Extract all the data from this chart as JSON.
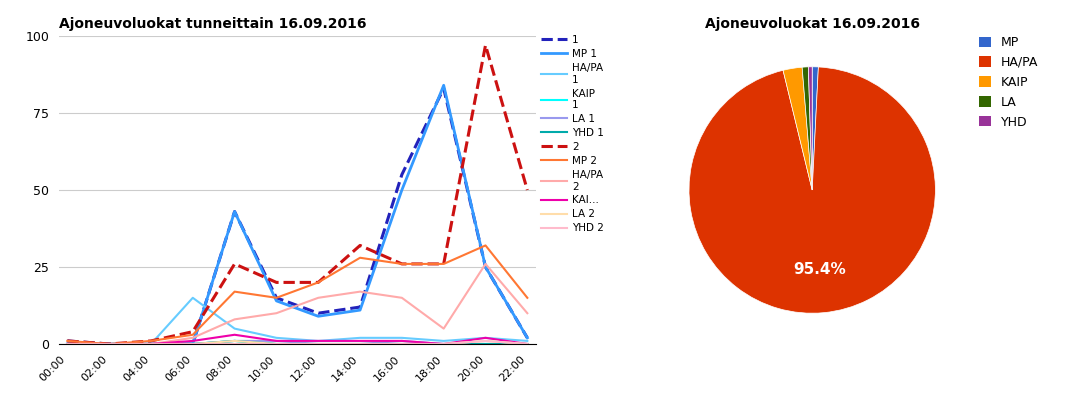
{
  "line_title": "Ajoneuvoluokat tunneittain 16.09.2016",
  "pie_title": "Ajoneuvoluokat 16.09.2016",
  "hours": [
    "00:00",
    "02:00",
    "04:00",
    "06:00",
    "08:00",
    "10:00",
    "12:00",
    "14:00",
    "16:00",
    "18:00",
    "20:00",
    "22:00"
  ],
  "series": [
    {
      "label": "1",
      "color": "#2222bb",
      "dash": "dashed",
      "lw": 2.2,
      "values": [
        1,
        0,
        0,
        0,
        43,
        15,
        10,
        12,
        55,
        83,
        25,
        2
      ]
    },
    {
      "label": "MP 1",
      "color": "#3399ff",
      "dash": "solid",
      "lw": 2.0,
      "values": [
        0,
        0,
        0,
        0,
        43,
        14,
        9,
        11,
        50,
        84,
        25,
        2
      ]
    },
    {
      "label": "HA/PA\n1",
      "color": "#66ccff",
      "dash": "solid",
      "lw": 1.5,
      "values": [
        0,
        0,
        0,
        15,
        5,
        2,
        1,
        2,
        2,
        1,
        2,
        1
      ]
    },
    {
      "label": "KAIP\n1",
      "color": "#00ffff",
      "dash": "solid",
      "lw": 1.5,
      "values": [
        0,
        0,
        0,
        0,
        1,
        0,
        0,
        0,
        0,
        0,
        0,
        0
      ]
    },
    {
      "label": "LA 1",
      "color": "#9999ee",
      "dash": "solid",
      "lw": 1.5,
      "values": [
        0,
        0,
        0,
        0,
        1,
        1,
        0,
        0,
        1,
        0,
        0,
        0
      ]
    },
    {
      "label": "YHD 1",
      "color": "#00aaaa",
      "dash": "solid",
      "lw": 1.5,
      "values": [
        0,
        0,
        0,
        0,
        1,
        0,
        0,
        0,
        0,
        0,
        0,
        0
      ]
    },
    {
      "label": "2",
      "color": "#cc1111",
      "dash": "dashed",
      "lw": 2.2,
      "values": [
        1,
        0,
        1,
        4,
        26,
        20,
        20,
        32,
        26,
        26,
        97,
        50
      ]
    },
    {
      "label": "MP 2",
      "color": "#ff7733",
      "dash": "solid",
      "lw": 1.5,
      "values": [
        1,
        0,
        1,
        3,
        17,
        15,
        20,
        28,
        26,
        26,
        32,
        15
      ]
    },
    {
      "label": "HA/PA\n2",
      "color": "#ffaaaa",
      "dash": "solid",
      "lw": 1.5,
      "values": [
        0,
        0,
        0,
        2,
        8,
        10,
        15,
        17,
        15,
        5,
        26,
        10
      ]
    },
    {
      "label": "KAI...",
      "color": "#ee00aa",
      "dash": "solid",
      "lw": 1.5,
      "values": [
        0,
        0,
        0,
        1,
        3,
        1,
        1,
        1,
        1,
        0,
        2,
        0
      ]
    },
    {
      "label": "LA 2",
      "color": "#ffddaa",
      "dash": "solid",
      "lw": 1.5,
      "values": [
        0,
        0,
        0,
        0,
        1,
        0,
        0,
        0,
        0,
        0,
        1,
        0
      ]
    },
    {
      "label": "YHD 2",
      "color": "#ffbbcc",
      "dash": "solid",
      "lw": 1.5,
      "values": [
        0,
        0,
        0,
        0,
        0,
        0,
        0,
        0,
        0,
        0,
        1,
        0
      ]
    }
  ],
  "ylim": [
    0,
    100
  ],
  "yticks": [
    0,
    25,
    50,
    75,
    100
  ],
  "pie_labels": [
    "MP",
    "HA/PA",
    "KAIP",
    "LA",
    "YHD"
  ],
  "pie_colors": [
    "#3366cc",
    "#dd3300",
    "#ff9900",
    "#336600",
    "#993399"
  ],
  "pie_sizes": [
    0.8,
    95.4,
    2.5,
    0.8,
    0.5
  ],
  "background": "#ffffff"
}
